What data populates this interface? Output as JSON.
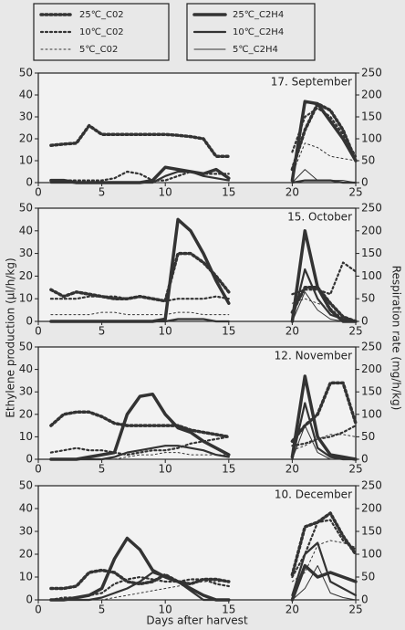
{
  "chart_data": [
    {
      "type": "line",
      "title": "17. September",
      "ylabel": "Ethylene production (μl/h/kg)",
      "y2label": "Respiration rate (mg/h/kg)",
      "x": [
        1,
        2,
        3,
        4,
        5,
        6,
        7,
        8,
        9,
        10,
        11,
        12,
        13,
        14,
        15,
        16,
        17,
        18,
        19,
        20,
        21,
        22,
        23,
        24,
        25
      ],
      "xlim": [
        0,
        25
      ],
      "xticks": [
        0,
        5,
        10,
        15,
        20,
        25
      ],
      "ylim": [
        0,
        50
      ],
      "yticks": [
        0,
        10,
        20,
        30,
        40,
        50
      ],
      "y2lim": [
        0,
        250
      ],
      "y2ticks": [
        0,
        50,
        100,
        150,
        200,
        250
      ],
      "series": [
        {
          "name": "25℃_C02",
          "color": "#333333",
          "style": "dotted",
          "axis": "y2",
          "values": [
            85,
            88,
            90,
            130,
            110,
            110,
            110,
            110,
            110,
            110,
            108,
            105,
            100,
            60,
            60,
            null,
            null,
            null,
            null,
            30,
            120,
            180,
            165,
            120,
            50
          ]
        },
        {
          "name": "10℃_C02",
          "color": "#333333",
          "style": "dotted",
          "axis": "y2",
          "values": [
            5,
            5,
            5,
            5,
            5,
            10,
            25,
            20,
            5,
            5,
            15,
            25,
            20,
            20,
            20,
            null,
            null,
            null,
            null,
            70,
            150,
            170,
            150,
            110,
            60
          ]
        },
        {
          "name": "5℃_C02",
          "color": "#333333",
          "style": "dotted",
          "axis": "y2",
          "values": [
            0,
            0,
            0,
            0,
            0,
            0,
            0,
            0,
            0,
            0,
            0,
            0,
            0,
            0,
            0,
            null,
            null,
            null,
            null,
            20,
            90,
            80,
            60,
            55,
            50
          ]
        },
        {
          "name": "25℃_C2H4",
          "color": "#333333",
          "style": "solid",
          "values": [
            1,
            1,
            0,
            0,
            0,
            0,
            0,
            0,
            1,
            7,
            6,
            5,
            4,
            6,
            2,
            null,
            null,
            null,
            null,
            1,
            37,
            36,
            28,
            20,
            10
          ]
        },
        {
          "name": "10℃_C2H4",
          "color": "#333333",
          "style": "solid",
          "values": [
            0,
            0,
            0,
            0,
            0,
            0,
            0,
            0,
            0,
            3,
            5,
            5,
            3,
            2,
            1,
            null,
            null,
            null,
            null,
            0,
            1,
            1,
            1,
            0,
            0
          ]
        },
        {
          "name": "5℃_C2H4",
          "color": "#333333",
          "style": "solid",
          "values": [
            0,
            0,
            0,
            0,
            0,
            0,
            0,
            0,
            0,
            0,
            0,
            0,
            0,
            0,
            0,
            null,
            null,
            null,
            null,
            0,
            6,
            1,
            1,
            1,
            0
          ]
        }
      ]
    },
    {
      "type": "line",
      "title": "15. October",
      "x": [
        1,
        2,
        3,
        4,
        5,
        6,
        7,
        8,
        9,
        10,
        11,
        12,
        13,
        14,
        15,
        16,
        17,
        18,
        19,
        20,
        21,
        22,
        23,
        24,
        25
      ],
      "xlim": [
        0,
        25
      ],
      "xticks": [
        0,
        5,
        10,
        15,
        20,
        25
      ],
      "ylim": [
        0,
        50
      ],
      "yticks": [
        0,
        10,
        20,
        30,
        40,
        50
      ],
      "y2lim": [
        0,
        250
      ],
      "y2ticks": [
        0,
        50,
        100,
        150,
        200,
        250
      ],
      "series": [
        {
          "name": "25℃_C02",
          "color": "#333333",
          "style": "dotted",
          "axis": "y2",
          "values": [
            70,
            55,
            65,
            60,
            55,
            50,
            50,
            55,
            50,
            45,
            150,
            150,
            130,
            100,
            65,
            null,
            null,
            null,
            null,
            20,
            75,
            75,
            40,
            10,
            0
          ]
        },
        {
          "name": "10℃_C02",
          "color": "#333333",
          "style": "dotted",
          "axis": "y2",
          "values": [
            50,
            50,
            50,
            55,
            55,
            55,
            50,
            55,
            50,
            45,
            50,
            50,
            50,
            55,
            50,
            null,
            null,
            null,
            null,
            60,
            70,
            70,
            60,
            130,
            110
          ]
        },
        {
          "name": "5℃_C02",
          "color": "#333333",
          "style": "dotted",
          "axis": "y2",
          "values": [
            15,
            15,
            15,
            15,
            20,
            20,
            15,
            15,
            15,
            15,
            20,
            20,
            15,
            15,
            15,
            null,
            null,
            null,
            null,
            40,
            50,
            40,
            30,
            5,
            0
          ]
        },
        {
          "name": "25℃_C2H4",
          "color": "#333333",
          "style": "solid",
          "values": [
            0,
            0,
            0,
            0,
            0,
            0,
            0,
            0,
            0,
            1,
            45,
            40,
            30,
            18,
            8,
            null,
            null,
            null,
            null,
            0,
            40,
            15,
            5,
            0,
            0
          ]
        },
        {
          "name": "10℃_C2H4",
          "color": "#333333",
          "style": "solid",
          "values": [
            0,
            0,
            0,
            0,
            0,
            0,
            0,
            0,
            0,
            0,
            1,
            1,
            1,
            0,
            0,
            null,
            null,
            null,
            null,
            0,
            23,
            10,
            3,
            1,
            0
          ]
        },
        {
          "name": "5℃_C2H4",
          "color": "#333333",
          "style": "solid",
          "values": [
            0,
            0,
            0,
            0,
            0,
            0,
            0,
            0,
            0,
            0,
            0,
            0,
            0,
            0,
            0,
            null,
            null,
            null,
            null,
            0,
            13,
            5,
            1,
            0,
            0
          ]
        }
      ]
    },
    {
      "type": "line",
      "title": "12. November",
      "x": [
        1,
        2,
        3,
        4,
        5,
        6,
        7,
        8,
        9,
        10,
        11,
        12,
        13,
        14,
        15,
        16,
        17,
        18,
        19,
        20,
        21,
        22,
        23,
        24,
        25
      ],
      "xlim": [
        0,
        25
      ],
      "xticks": [
        0,
        5,
        10,
        15,
        20,
        25
      ],
      "ylim": [
        0,
        50
      ],
      "yticks": [
        0,
        10,
        20,
        30,
        40,
        50
      ],
      "y2lim": [
        0,
        250
      ],
      "y2ticks": [
        0,
        50,
        100,
        150,
        200,
        250
      ],
      "series": [
        {
          "name": "25℃_C02",
          "color": "#333333",
          "style": "dotted",
          "axis": "y2",
          "values": [
            75,
            100,
            105,
            105,
            95,
            80,
            75,
            75,
            75,
            75,
            75,
            65,
            60,
            55,
            50,
            null,
            null,
            null,
            null,
            40,
            75,
            100,
            170,
            170,
            80
          ]
        },
        {
          "name": "10℃_C02",
          "color": "#333333",
          "style": "dotted",
          "axis": "y2",
          "values": [
            15,
            20,
            25,
            20,
            20,
            15,
            10,
            15,
            20,
            20,
            25,
            35,
            40,
            45,
            50,
            null,
            null,
            null,
            null,
            30,
            35,
            45,
            50,
            60,
            75
          ]
        },
        {
          "name": "5℃_C02",
          "color": "#333333",
          "style": "dotted",
          "axis": "y2",
          "values": [
            0,
            0,
            0,
            0,
            0,
            0,
            5,
            10,
            10,
            15,
            15,
            10,
            10,
            10,
            10,
            null,
            null,
            null,
            null,
            20,
            30,
            45,
            55,
            55,
            50
          ]
        },
        {
          "name": "25℃_C2H4",
          "color": "#333333",
          "style": "solid",
          "values": [
            0,
            0,
            0,
            1,
            2,
            3,
            20,
            28,
            29,
            20,
            14,
            12,
            8,
            5,
            2,
            null,
            null,
            null,
            null,
            1,
            37,
            10,
            2,
            1,
            0
          ]
        },
        {
          "name": "10℃_C2H4",
          "color": "#333333",
          "style": "solid",
          "values": [
            0,
            0,
            0,
            0,
            0,
            1,
            3,
            4,
            5,
            6,
            6,
            5,
            4,
            2,
            1,
            null,
            null,
            null,
            null,
            0,
            25,
            5,
            1,
            0,
            0
          ]
        },
        {
          "name": "5℃_C2H4",
          "color": "#333333",
          "style": "solid",
          "values": [
            0,
            0,
            0,
            0,
            0,
            0,
            0,
            0,
            0,
            0,
            0,
            0,
            0,
            0,
            0,
            null,
            null,
            null,
            null,
            0,
            15,
            3,
            0,
            0,
            0
          ]
        }
      ]
    },
    {
      "type": "line",
      "title": "10. December",
      "xlabel": "Days after harvest",
      "x": [
        1,
        2,
        3,
        4,
        5,
        6,
        7,
        8,
        9,
        10,
        11,
        12,
        13,
        14,
        15,
        16,
        17,
        18,
        19,
        20,
        21,
        22,
        23,
        24,
        25
      ],
      "xlim": [
        0,
        25
      ],
      "xticks": [
        0,
        5,
        10,
        15,
        20,
        25
      ],
      "ylim": [
        0,
        50
      ],
      "yticks": [
        0,
        10,
        20,
        30,
        40,
        50
      ],
      "y2lim": [
        0,
        250
      ],
      "y2ticks": [
        0,
        50,
        100,
        150,
        200,
        250
      ],
      "series": [
        {
          "name": "25℃_C02",
          "color": "#333333",
          "style": "dotted",
          "axis": "y2",
          "values": [
            25,
            25,
            30,
            60,
            65,
            60,
            40,
            35,
            40,
            55,
            40,
            35,
            45,
            45,
            40,
            null,
            null,
            null,
            null,
            55,
            160,
            170,
            190,
            140,
            100
          ]
        },
        {
          "name": "10℃_C02",
          "color": "#333333",
          "style": "dotted",
          "axis": "y2",
          "values": [
            0,
            5,
            5,
            10,
            15,
            35,
            45,
            50,
            45,
            40,
            40,
            45,
            45,
            35,
            30,
            null,
            null,
            null,
            null,
            50,
            100,
            170,
            175,
            130,
            110
          ]
        },
        {
          "name": "5℃_C02",
          "color": "#333333",
          "style": "dotted",
          "axis": "y2",
          "values": [
            0,
            0,
            0,
            0,
            0,
            5,
            10,
            15,
            20,
            25,
            30,
            35,
            40,
            40,
            40,
            null,
            null,
            null,
            null,
            40,
            60,
            120,
            130,
            125,
            115
          ]
        },
        {
          "name": "25℃_C2H4",
          "color": "#333333",
          "style": "solid",
          "values": [
            0,
            0,
            1,
            2,
            5,
            18,
            27,
            22,
            13,
            10,
            8,
            5,
            2,
            0,
            0,
            null,
            null,
            null,
            null,
            0,
            15,
            10,
            12,
            10,
            8
          ]
        },
        {
          "name": "10℃_C2H4",
          "color": "#333333",
          "style": "solid",
          "values": [
            0,
            0,
            0,
            0,
            1,
            3,
            5,
            8,
            12,
            10,
            8,
            4,
            0,
            0,
            0,
            null,
            null,
            null,
            null,
            2,
            20,
            25,
            8,
            5,
            2
          ]
        },
        {
          "name": "5℃_C2H4",
          "color": "#333333",
          "style": "solid",
          "values": [
            0,
            0,
            0,
            0,
            0,
            0,
            0,
            0,
            0,
            0,
            0,
            0,
            0,
            0,
            0,
            null,
            null,
            null,
            null,
            0,
            5,
            15,
            3,
            1,
            0
          ]
        }
      ]
    }
  ]
}
